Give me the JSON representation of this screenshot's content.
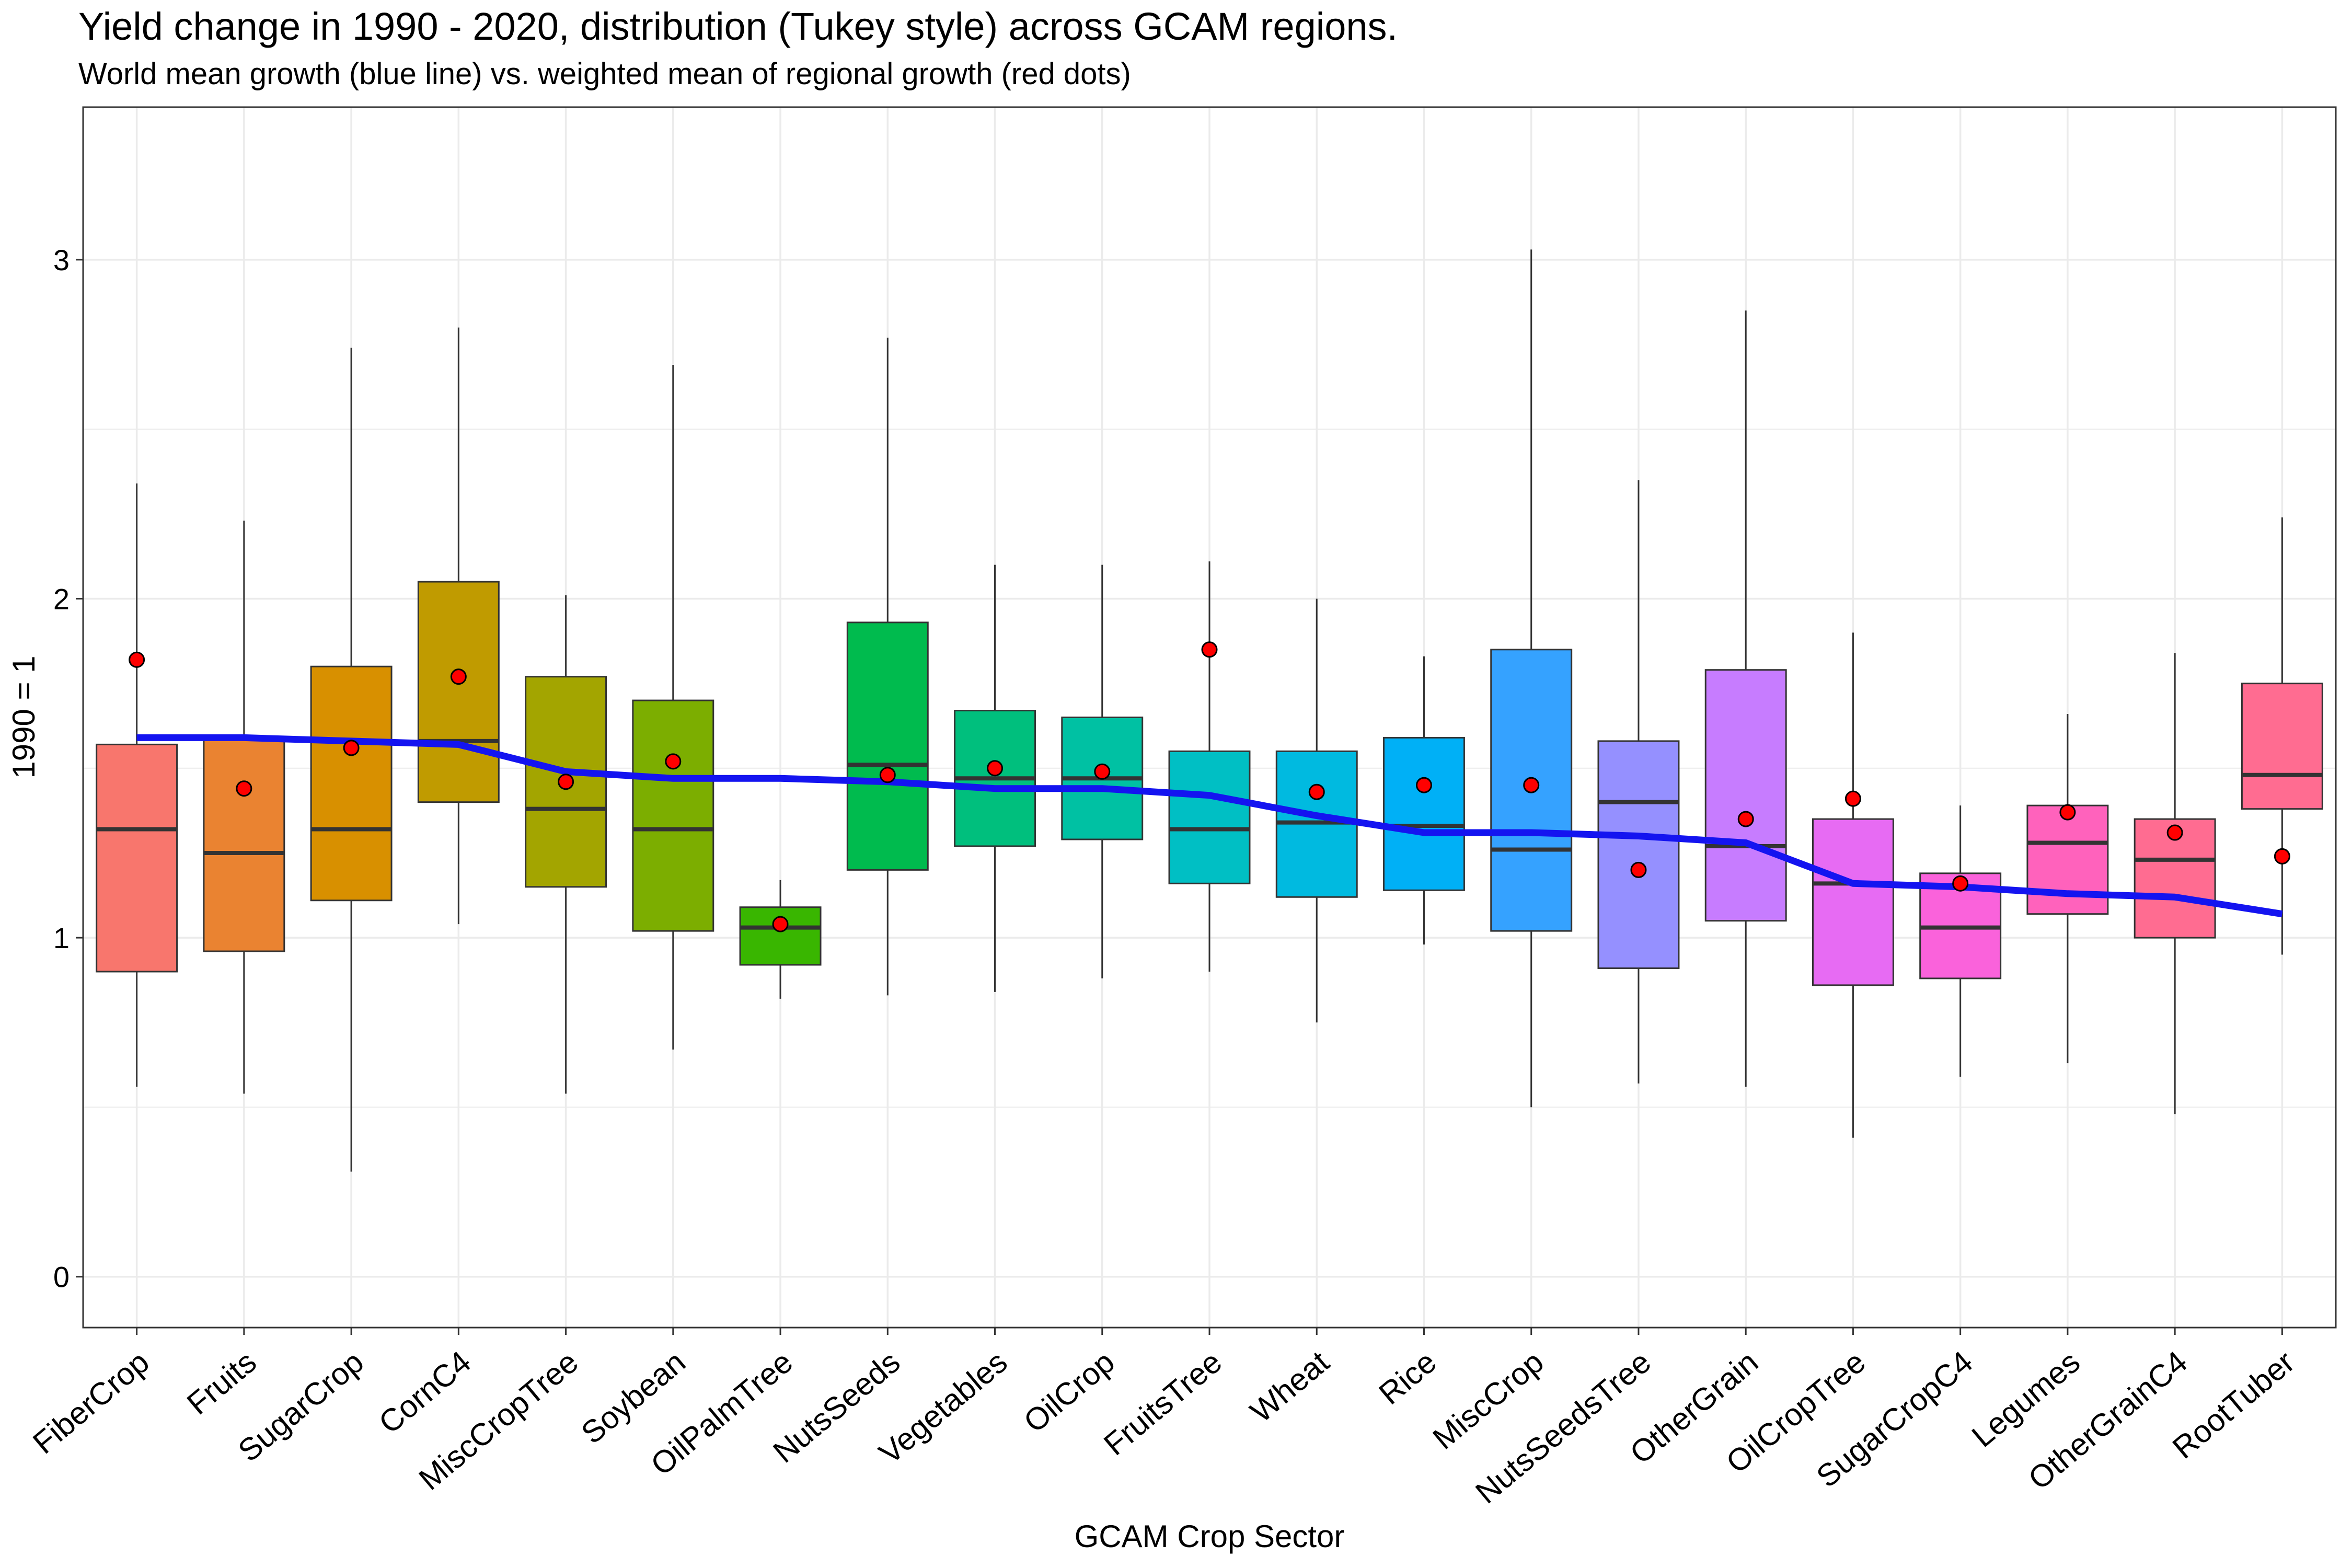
{
  "chart_data": {
    "type": "box",
    "title": "Yield change in 1990 - 2020, distribution (Tukey style) across GCAM regions.",
    "subtitle": "World mean growth (blue line) vs. weighted mean of regional growth (red dots)",
    "xlabel": "GCAM Crop Sector",
    "ylabel": "1990 = 1",
    "ylim": [
      -0.15,
      3.45
    ],
    "yticks": [
      0,
      1,
      2,
      3
    ],
    "grid": true,
    "colors": {
      "world_line": "#1414f0",
      "regional_dots": "#ff0000",
      "median": "#333333",
      "grid": "#ebebeb"
    },
    "categories": [
      "FiberCrop",
      "Fruits",
      "SugarCrop",
      "CornC4",
      "MiscCropTree",
      "Soybean",
      "OilPalmTree",
      "NutsSeeds",
      "Vegetables",
      "OilCrop",
      "FruitsTree",
      "Wheat",
      "Rice",
      "MiscCrop",
      "NutsSeedsTree",
      "OtherGrain",
      "OilCropTree",
      "SugarCropC4",
      "Legumes",
      "OtherGrainC4",
      "RootTuber"
    ],
    "fill_colors": [
      "#F8766D",
      "#EA8331",
      "#D89000",
      "#C09B00",
      "#A3A500",
      "#7CAE00",
      "#39B600",
      "#00BB4E",
      "#00BF7D",
      "#00C1A3",
      "#00BFC4",
      "#00BAE0",
      "#00B0F6",
      "#35A2FF",
      "#9590FF",
      "#C77CFF",
      "#E76BF3",
      "#FA62DB",
      "#FF62BC",
      "#FF6C91",
      "#FF6C91"
    ],
    "boxes": [
      {
        "whisker_low": 0.56,
        "q1": 0.9,
        "median": 1.32,
        "q3": 1.57,
        "whisker_high": 2.34
      },
      {
        "whisker_low": 0.54,
        "q1": 0.96,
        "median": 1.25,
        "q3": 1.59,
        "whisker_high": 2.23
      },
      {
        "whisker_low": 0.31,
        "q1": 1.11,
        "median": 1.32,
        "q3": 1.8,
        "whisker_high": 2.74
      },
      {
        "whisker_low": 1.04,
        "q1": 1.4,
        "median": 1.58,
        "q3": 2.05,
        "whisker_high": 2.8
      },
      {
        "whisker_low": 0.54,
        "q1": 1.15,
        "median": 1.38,
        "q3": 1.77,
        "whisker_high": 2.01
      },
      {
        "whisker_low": 0.67,
        "q1": 1.02,
        "median": 1.32,
        "q3": 1.7,
        "whisker_high": 2.69
      },
      {
        "whisker_low": 0.82,
        "q1": 0.92,
        "median": 1.03,
        "q3": 1.09,
        "whisker_high": 1.17
      },
      {
        "whisker_low": 0.83,
        "q1": 1.2,
        "median": 1.51,
        "q3": 1.93,
        "whisker_high": 2.77
      },
      {
        "whisker_low": 0.84,
        "q1": 1.27,
        "median": 1.47,
        "q3": 1.67,
        "whisker_high": 2.1
      },
      {
        "whisker_low": 0.88,
        "q1": 1.29,
        "median": 1.47,
        "q3": 1.65,
        "whisker_high": 2.1
      },
      {
        "whisker_low": 0.9,
        "q1": 1.16,
        "median": 1.32,
        "q3": 1.55,
        "whisker_high": 2.11
      },
      {
        "whisker_low": 0.75,
        "q1": 1.12,
        "median": 1.34,
        "q3": 1.55,
        "whisker_high": 2.0
      },
      {
        "whisker_low": 0.98,
        "q1": 1.14,
        "median": 1.33,
        "q3": 1.59,
        "whisker_high": 1.83
      },
      {
        "whisker_low": 0.5,
        "q1": 1.02,
        "median": 1.26,
        "q3": 1.85,
        "whisker_high": 3.03
      },
      {
        "whisker_low": 0.57,
        "q1": 0.91,
        "median": 1.4,
        "q3": 1.58,
        "whisker_high": 2.35
      },
      {
        "whisker_low": 0.56,
        "q1": 1.05,
        "median": 1.27,
        "q3": 1.79,
        "whisker_high": 2.85
      },
      {
        "whisker_low": 0.41,
        "q1": 0.86,
        "median": 1.16,
        "q3": 1.35,
        "whisker_high": 1.9
      },
      {
        "whisker_low": 0.59,
        "q1": 0.88,
        "median": 1.03,
        "q3": 1.19,
        "whisker_high": 1.39
      },
      {
        "whisker_low": 0.63,
        "q1": 1.07,
        "median": 1.28,
        "q3": 1.39,
        "whisker_high": 1.66
      },
      {
        "whisker_low": 0.48,
        "q1": 1.0,
        "median": 1.23,
        "q3": 1.35,
        "whisker_high": 1.84
      },
      {
        "whisker_low": 0.95,
        "q1": 1.38,
        "median": 1.48,
        "q3": 1.75,
        "whisker_high": 2.24
      }
    ],
    "series": [
      {
        "values": [
          1.59,
          1.59,
          1.58,
          1.57,
          1.49,
          1.47,
          1.47,
          1.46,
          1.44,
          1.44,
          1.42,
          1.36,
          1.31,
          1.31,
          1.3,
          1.28,
          1.16,
          1.15,
          1.13,
          1.12,
          1.07
        ]
      },
      {
        "values": [
          1.82,
          1.44,
          1.56,
          1.77,
          1.46,
          1.52,
          1.04,
          1.48,
          1.5,
          1.49,
          1.85,
          1.43,
          1.45,
          1.45,
          1.2,
          1.35,
          1.41,
          1.16,
          1.37,
          1.31,
          1.24
        ]
      }
    ]
  }
}
